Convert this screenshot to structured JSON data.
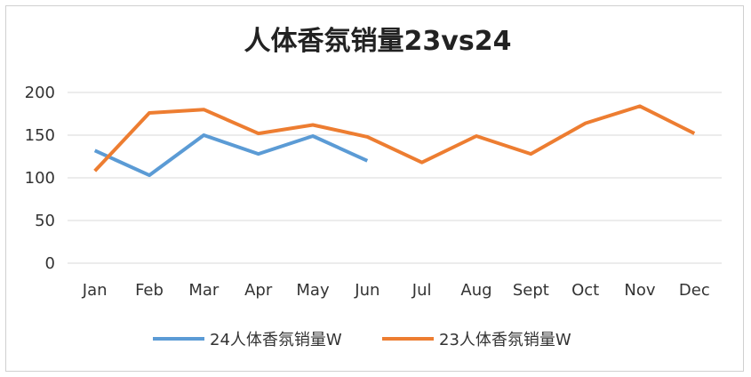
{
  "chart_data": {
    "type": "line",
    "title": "人体香氛销量23vs24",
    "xlabel": "",
    "ylabel": "",
    "categories": [
      "Jan",
      "Feb",
      "Mar",
      "Apr",
      "May",
      "Jun",
      "Jul",
      "Aug",
      "Sept",
      "Oct",
      "Nov",
      "Dec"
    ],
    "ylim": [
      0,
      200
    ],
    "yticks": [
      "0",
      "50",
      "100",
      "150",
      "200"
    ],
    "grid": true,
    "legend_position": "bottom",
    "series": [
      {
        "name": "24人体香氛销量W",
        "color": "#5b9bd5",
        "values": [
          132,
          103,
          150,
          128,
          149,
          120,
          null,
          null,
          null,
          null,
          null,
          null
        ]
      },
      {
        "name": "23人体香氛销量W",
        "color": "#ed7d31",
        "values": [
          108,
          176,
          180,
          152,
          162,
          148,
          118,
          149,
          128,
          164,
          184,
          152
        ]
      }
    ]
  }
}
